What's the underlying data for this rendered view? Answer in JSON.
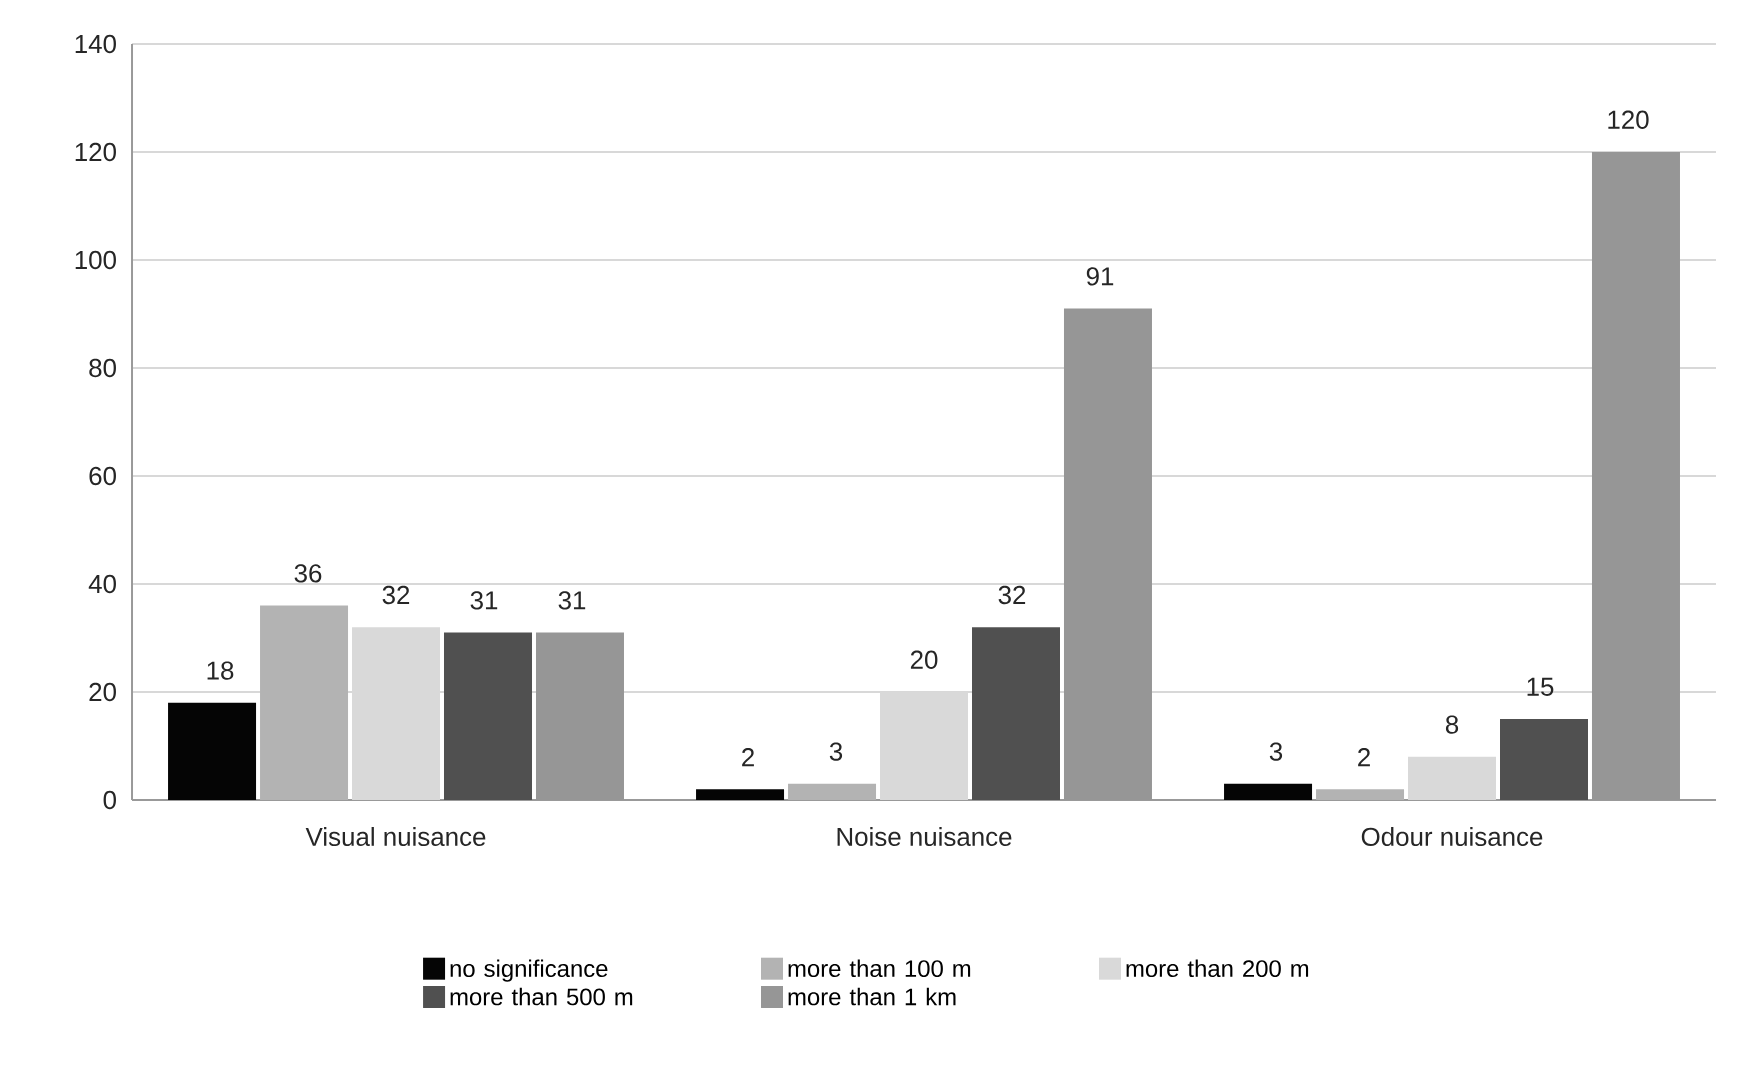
{
  "chart_data": {
    "type": "bar",
    "categories": [
      "Visual nuisance",
      "Noise nuisance",
      "Odour nuisance"
    ],
    "series": [
      {
        "name": "no significance",
        "color": "#050505",
        "values": [
          18,
          2,
          3
        ]
      },
      {
        "name": "more than 100 m",
        "color": "#b3b3b3",
        "values": [
          36,
          3,
          2
        ]
      },
      {
        "name": "more than 200 m",
        "color": "#d9d9d9",
        "values": [
          32,
          20,
          8
        ]
      },
      {
        "name": "more than 500 m",
        "color": "#505050",
        "values": [
          31,
          32,
          15
        ]
      },
      {
        "name": "more than 1 km",
        "color": "#969696",
        "values": [
          31,
          91,
          120
        ]
      }
    ],
    "ylim": [
      0,
      140
    ],
    "yticks": [
      0,
      20,
      40,
      60,
      80,
      100,
      120,
      140
    ],
    "grid": "y",
    "legend": "bottom",
    "data_labels": true
  }
}
